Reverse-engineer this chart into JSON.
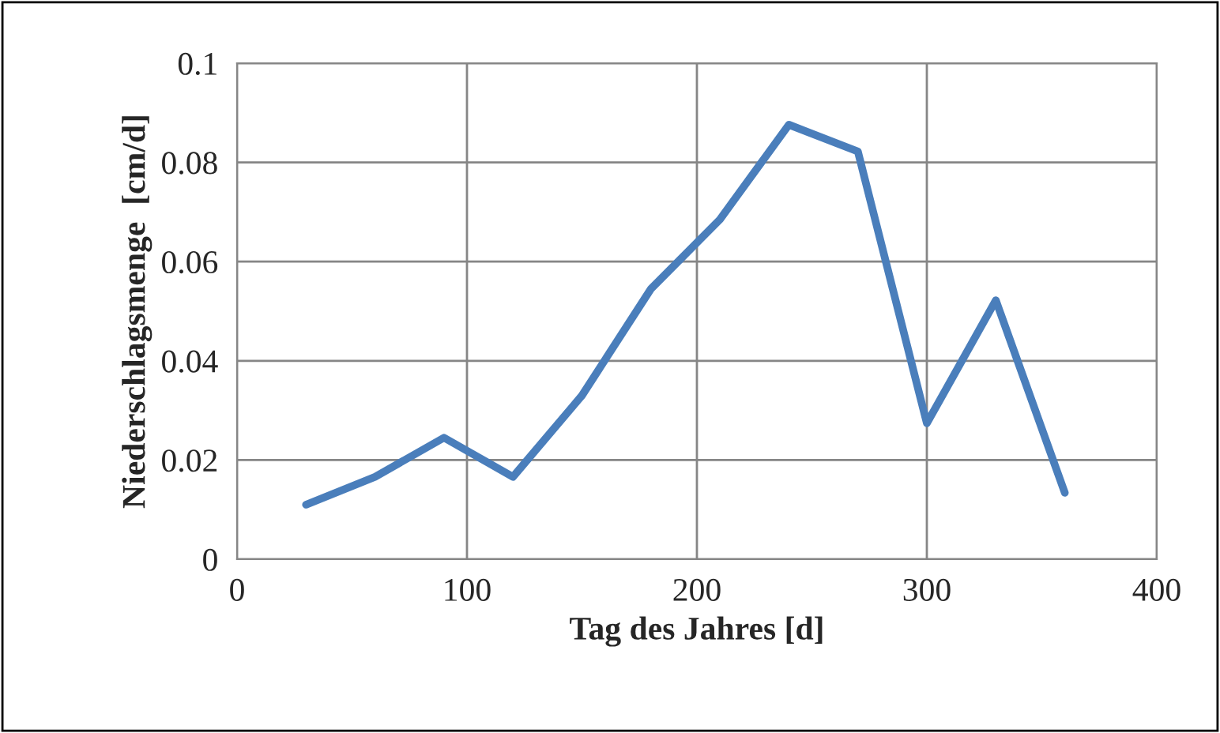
{
  "chart_data": {
    "type": "line",
    "xlabel": "Tag des Jahres [d]",
    "ylabel": "Niederschlagsmenge  [cm/d]",
    "x": [
      30,
      60,
      90,
      120,
      150,
      180,
      210,
      240,
      270,
      300,
      330,
      360
    ],
    "series": [
      {
        "color": "#4a7ebb",
        "values": [
          0.011,
          0.0166,
          0.0245,
          0.0166,
          0.033,
          0.0545,
          0.0685,
          0.0876,
          0.0822,
          0.0274,
          0.0522,
          0.0134
        ]
      }
    ],
    "xlim": [
      0,
      400
    ],
    "xticks": [
      0,
      100,
      200,
      300,
      400
    ],
    "ylim": [
      0,
      0.1
    ],
    "yticks": [
      {
        "value": 0,
        "label": "0"
      },
      0.02,
      0.04,
      0.06,
      0.08,
      0.1
    ],
    "grid": true,
    "legend": false,
    "marker": "none",
    "line_style": "solid"
  }
}
